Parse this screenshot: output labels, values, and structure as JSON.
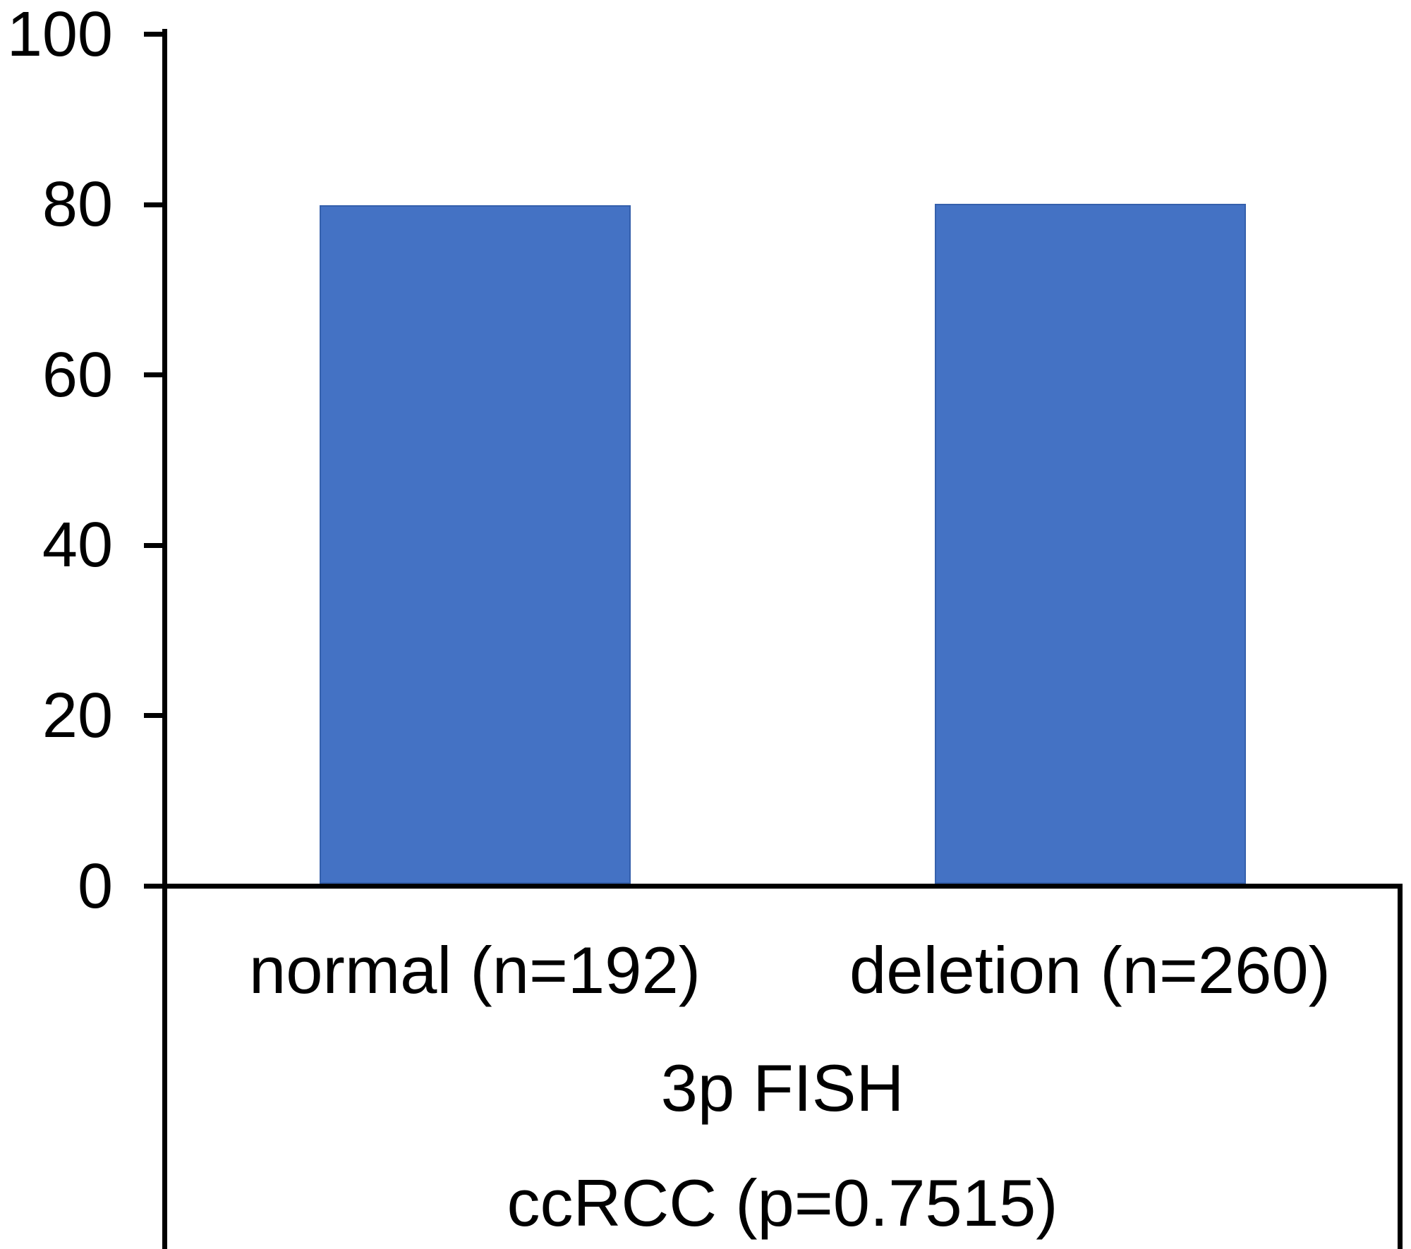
{
  "figure": {
    "background_color": "#ffffff",
    "text_color": "#000000",
    "axis_color": "#000000"
  },
  "chart_data": {
    "type": "bar",
    "title": "",
    "categories": [
      "normal (n=192)",
      "deletion (n=260)"
    ],
    "values": [
      79.6,
      79.8
    ],
    "bar_color": "#4472C4",
    "bar_border_color": "#3560AC",
    "xlabel_lines": [
      "3p FISH",
      "ccRCC (p=0.7515)"
    ],
    "ylabel": "",
    "xlabel": "3p FISH",
    "subtitle": "ccRCC (p=0.7515)",
    "ylim": [
      0,
      100
    ],
    "yticks": [
      0,
      20,
      40,
      60,
      80,
      100
    ],
    "ytick_labels": [
      "0",
      "20",
      "40",
      "60",
      "80",
      "100"
    ],
    "grid": false,
    "legend_position": "none"
  }
}
